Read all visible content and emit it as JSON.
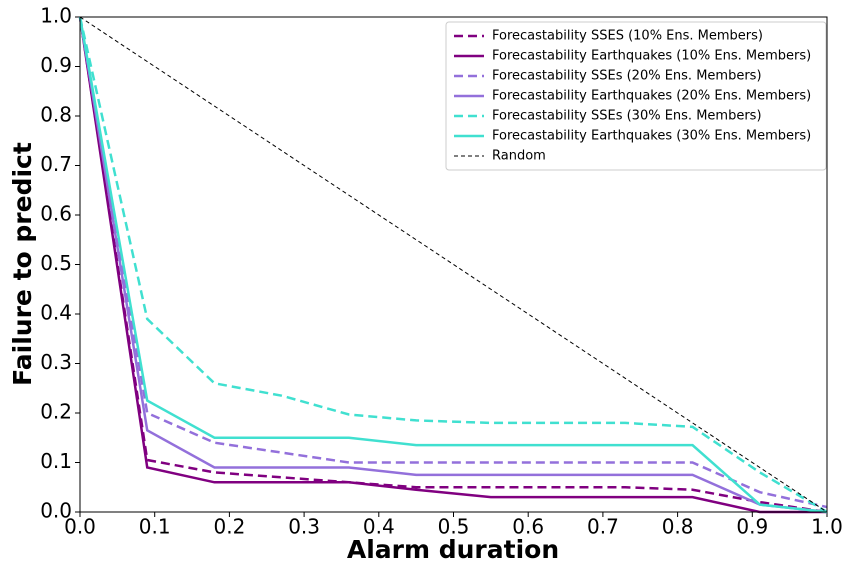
{
  "chart_data": {
    "type": "line",
    "xlabel": "Alarm duration",
    "ylabel": "Failure to predict",
    "x": [
      0,
      0.09,
      0.18,
      0.27,
      0.36,
      0.45,
      0.55,
      0.64,
      0.73,
      0.82,
      0.91,
      1
    ],
    "series": [
      {
        "name": "Forecastability SSES (10% Ens. Members)",
        "color": "#800080",
        "dashed": true,
        "values": [
          1,
          0.105,
          0.08,
          0.07,
          0.06,
          0.05,
          0.05,
          0.05,
          0.05,
          0.045,
          0.02,
          0
        ]
      },
      {
        "name": "Forecastability Earthquakes (10% Ens. Members)",
        "color": "#800080",
        "dashed": false,
        "values": [
          1,
          0.09,
          0.06,
          0.06,
          0.06,
          0.045,
          0.03,
          0.03,
          0.03,
          0.03,
          0,
          0
        ]
      },
      {
        "name": "Forecastability SSEs (20% Ens. Members)",
        "color": "#9370db",
        "dashed": true,
        "values": [
          1,
          0.2,
          0.14,
          0.12,
          0.1,
          0.1,
          0.1,
          0.1,
          0.1,
          0.1,
          0.04,
          0.01
        ]
      },
      {
        "name": "Forecastability Earthquakes (20% Ens. Members)",
        "color": "#9370db",
        "dashed": false,
        "values": [
          1,
          0.165,
          0.09,
          0.09,
          0.09,
          0.075,
          0.075,
          0.075,
          0.075,
          0.075,
          0.015,
          0
        ]
      },
      {
        "name": "Forecastability SSEs (30% Ens. Members)",
        "color": "#40e0d0",
        "dashed": true,
        "values": [
          1,
          0.39,
          0.26,
          0.235,
          0.197,
          0.185,
          0.18,
          0.18,
          0.18,
          0.172,
          0.08,
          0
        ]
      },
      {
        "name": "Forecastability Earthquakes (30% Ens. Members)",
        "color": "#40e0d0",
        "dashed": false,
        "values": [
          1,
          0.225,
          0.15,
          0.15,
          0.15,
          0.135,
          0.135,
          0.135,
          0.135,
          0.135,
          0.015,
          0
        ]
      },
      {
        "name": "Random",
        "color": "#000000",
        "dashed": true,
        "thin": true,
        "x": [
          0,
          1
        ],
        "values": [
          1,
          0
        ]
      }
    ],
    "xlim": [
      0,
      1
    ],
    "ylim": [
      0,
      1
    ],
    "xticks": [
      {
        "value": 0,
        "label": "0.0"
      },
      0.1,
      0.2,
      0.3,
      0.4,
      0.5,
      0.6,
      0.7,
      0.8,
      0.9,
      {
        "value": 1,
        "label": "1.0"
      }
    ],
    "yticks": [
      {
        "value": 0,
        "label": "0.0"
      },
      0.1,
      0.2,
      0.3,
      0.4,
      0.5,
      0.6,
      0.7,
      0.8,
      0.9,
      {
        "value": 1,
        "label": "1.0"
      }
    ],
    "grid": false,
    "legend": "upper right"
  }
}
